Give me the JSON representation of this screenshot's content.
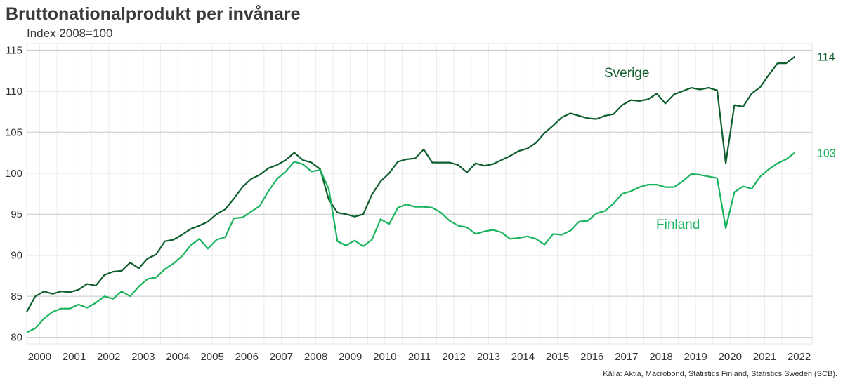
{
  "chart_data": {
    "type": "line",
    "title": "Bruttonationalprodukt per invånare",
    "subtitle": "Index 2008=100",
    "source": "Källa: Aktia, Macrobond, Statistics Finland, Statistics Sweden (SCB).",
    "x_tick_labels": [
      "2000",
      "2001",
      "2002",
      "2003",
      "2004",
      "2005",
      "2006",
      "2007",
      "2008",
      "2009",
      "2010",
      "2011",
      "2012",
      "2013",
      "2014",
      "2015",
      "2016",
      "2017",
      "2018",
      "2019",
      "2020",
      "2021",
      "2022"
    ],
    "xlim": [
      1999.625,
      2022.375
    ],
    "ylim": [
      79.2,
      115.8
    ],
    "y_ticks": [
      80,
      85,
      90,
      95,
      100,
      105,
      110,
      115
    ],
    "grid": true,
    "x_start": 1999.625,
    "x_step": 0.25,
    "series": [
      {
        "name": "Sverige",
        "color": "#0f5e2e",
        "end_label": "114",
        "values": [
          83.1,
          85.0,
          85.6,
          85.3,
          85.6,
          85.5,
          85.8,
          86.5,
          86.3,
          87.6,
          88.0,
          88.1,
          89.1,
          88.4,
          89.6,
          90.1,
          91.7,
          91.9,
          92.5,
          93.2,
          93.6,
          94.1,
          95.0,
          95.6,
          96.9,
          98.3,
          99.3,
          99.8,
          100.6,
          101.0,
          101.6,
          102.5,
          101.6,
          101.3,
          100.5,
          96.8,
          95.2,
          95.0,
          94.7,
          95.0,
          97.4,
          99.0,
          100.0,
          101.4,
          101.7,
          101.8,
          102.9,
          101.3,
          101.3,
          101.3,
          101.0,
          100.1,
          101.2,
          100.9,
          101.1,
          101.6,
          102.1,
          102.7,
          103.0,
          103.7,
          104.9,
          105.8,
          106.8,
          107.3,
          107.0,
          106.7,
          106.6,
          107.0,
          107.2,
          108.3,
          108.9,
          108.8,
          109.0,
          109.7,
          108.5,
          109.6,
          110.0,
          110.4,
          110.2,
          110.4,
          110.1,
          101.2,
          108.3,
          108.1,
          109.7,
          110.5,
          112.0,
          113.4,
          113.4,
          114.2
        ]
      },
      {
        "name": "Finland",
        "color": "#19b35d",
        "end_label": "103",
        "values": [
          80.6,
          81.1,
          82.3,
          83.1,
          83.5,
          83.5,
          84.0,
          83.6,
          84.2,
          85.0,
          84.7,
          85.6,
          85.0,
          86.2,
          87.1,
          87.3,
          88.3,
          89.0,
          89.9,
          91.2,
          92.0,
          90.8,
          91.9,
          92.2,
          94.5,
          94.6,
          95.3,
          96.0,
          97.8,
          99.3,
          100.2,
          101.4,
          101.1,
          100.2,
          100.4,
          98.1,
          91.7,
          91.2,
          91.8,
          91.1,
          91.9,
          94.4,
          93.8,
          95.8,
          96.2,
          95.9,
          95.9,
          95.8,
          95.2,
          94.2,
          93.6,
          93.4,
          92.6,
          92.9,
          93.1,
          92.8,
          92.0,
          92.1,
          92.3,
          92.0,
          91.3,
          92.6,
          92.5,
          93.0,
          94.1,
          94.2,
          95.1,
          95.4,
          96.3,
          97.5,
          97.8,
          98.3,
          98.6,
          98.6,
          98.3,
          98.3,
          99.0,
          99.9,
          99.8,
          99.6,
          99.4,
          93.3,
          97.7,
          98.4,
          98.1,
          99.6,
          100.5,
          101.2,
          101.7,
          102.5
        ]
      }
    ]
  }
}
